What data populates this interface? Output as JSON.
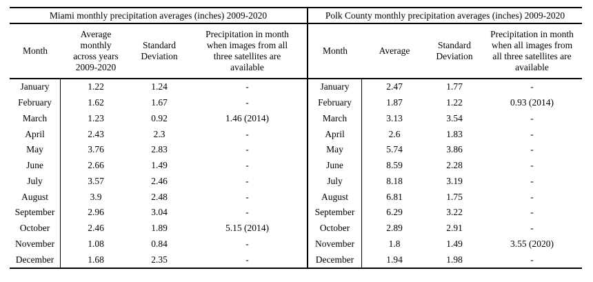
{
  "page": {
    "background_color": "#ffffff",
    "text_color": "#000000",
    "rule_color": "#000000"
  },
  "tables": [
    {
      "title": "Miami monthly precipitation averages (inches) 2009-2020",
      "columns": [
        "Month",
        "Average\nmonthly\nacross years\n2009-2020",
        "Standard\nDeviation",
        "Precipitation in month\nwhen images from all\nthree satellites are\navailable"
      ],
      "rows": [
        [
          "January",
          "1.22",
          "1.24",
          "-"
        ],
        [
          "February",
          "1.62",
          "1.67",
          "-"
        ],
        [
          "March",
          "1.23",
          "0.92",
          "1.46 (2014)"
        ],
        [
          "April",
          "2.43",
          "2.3",
          "-"
        ],
        [
          "May",
          "3.76",
          "2.83",
          "-"
        ],
        [
          "June",
          "2.66",
          "1.49",
          "-"
        ],
        [
          "July",
          "3.57",
          "2.46",
          "-"
        ],
        [
          "August",
          "3.9",
          "2.48",
          "-"
        ],
        [
          "September",
          "2.96",
          "3.04",
          "-"
        ],
        [
          "October",
          "2.46",
          "1.89",
          "5.15 (2014)"
        ],
        [
          "November",
          "1.08",
          "0.84",
          "-"
        ],
        [
          "December",
          "1.68",
          "2.35",
          "-"
        ]
      ]
    },
    {
      "title": "Polk County monthly precipitation averages (inches) 2009-2020",
      "columns": [
        "Month",
        "Average",
        "Standard\nDeviation",
        "Precipitation in month\nwhen all images from\nall three satellites are\navailable"
      ],
      "rows": [
        [
          "January",
          "2.47",
          "1.77",
          "-"
        ],
        [
          "February",
          "1.87",
          "1.22",
          "0.93 (2014)"
        ],
        [
          "March",
          "3.13",
          "3.54",
          "-"
        ],
        [
          "April",
          "2.6",
          "1.83",
          "-"
        ],
        [
          "May",
          "5.74",
          "3.86",
          "-"
        ],
        [
          "June",
          "8.59",
          "2.28",
          "-"
        ],
        [
          "July",
          "8.18",
          "3.19",
          "-"
        ],
        [
          "August",
          "6.81",
          "1.75",
          "-"
        ],
        [
          "September",
          "6.29",
          "3.22",
          "-"
        ],
        [
          "October",
          "2.89",
          "2.91",
          "-"
        ],
        [
          "November",
          "1.8",
          "1.49",
          "3.55 (2020)"
        ],
        [
          "December",
          "1.94",
          "1.98",
          "-"
        ]
      ]
    }
  ]
}
